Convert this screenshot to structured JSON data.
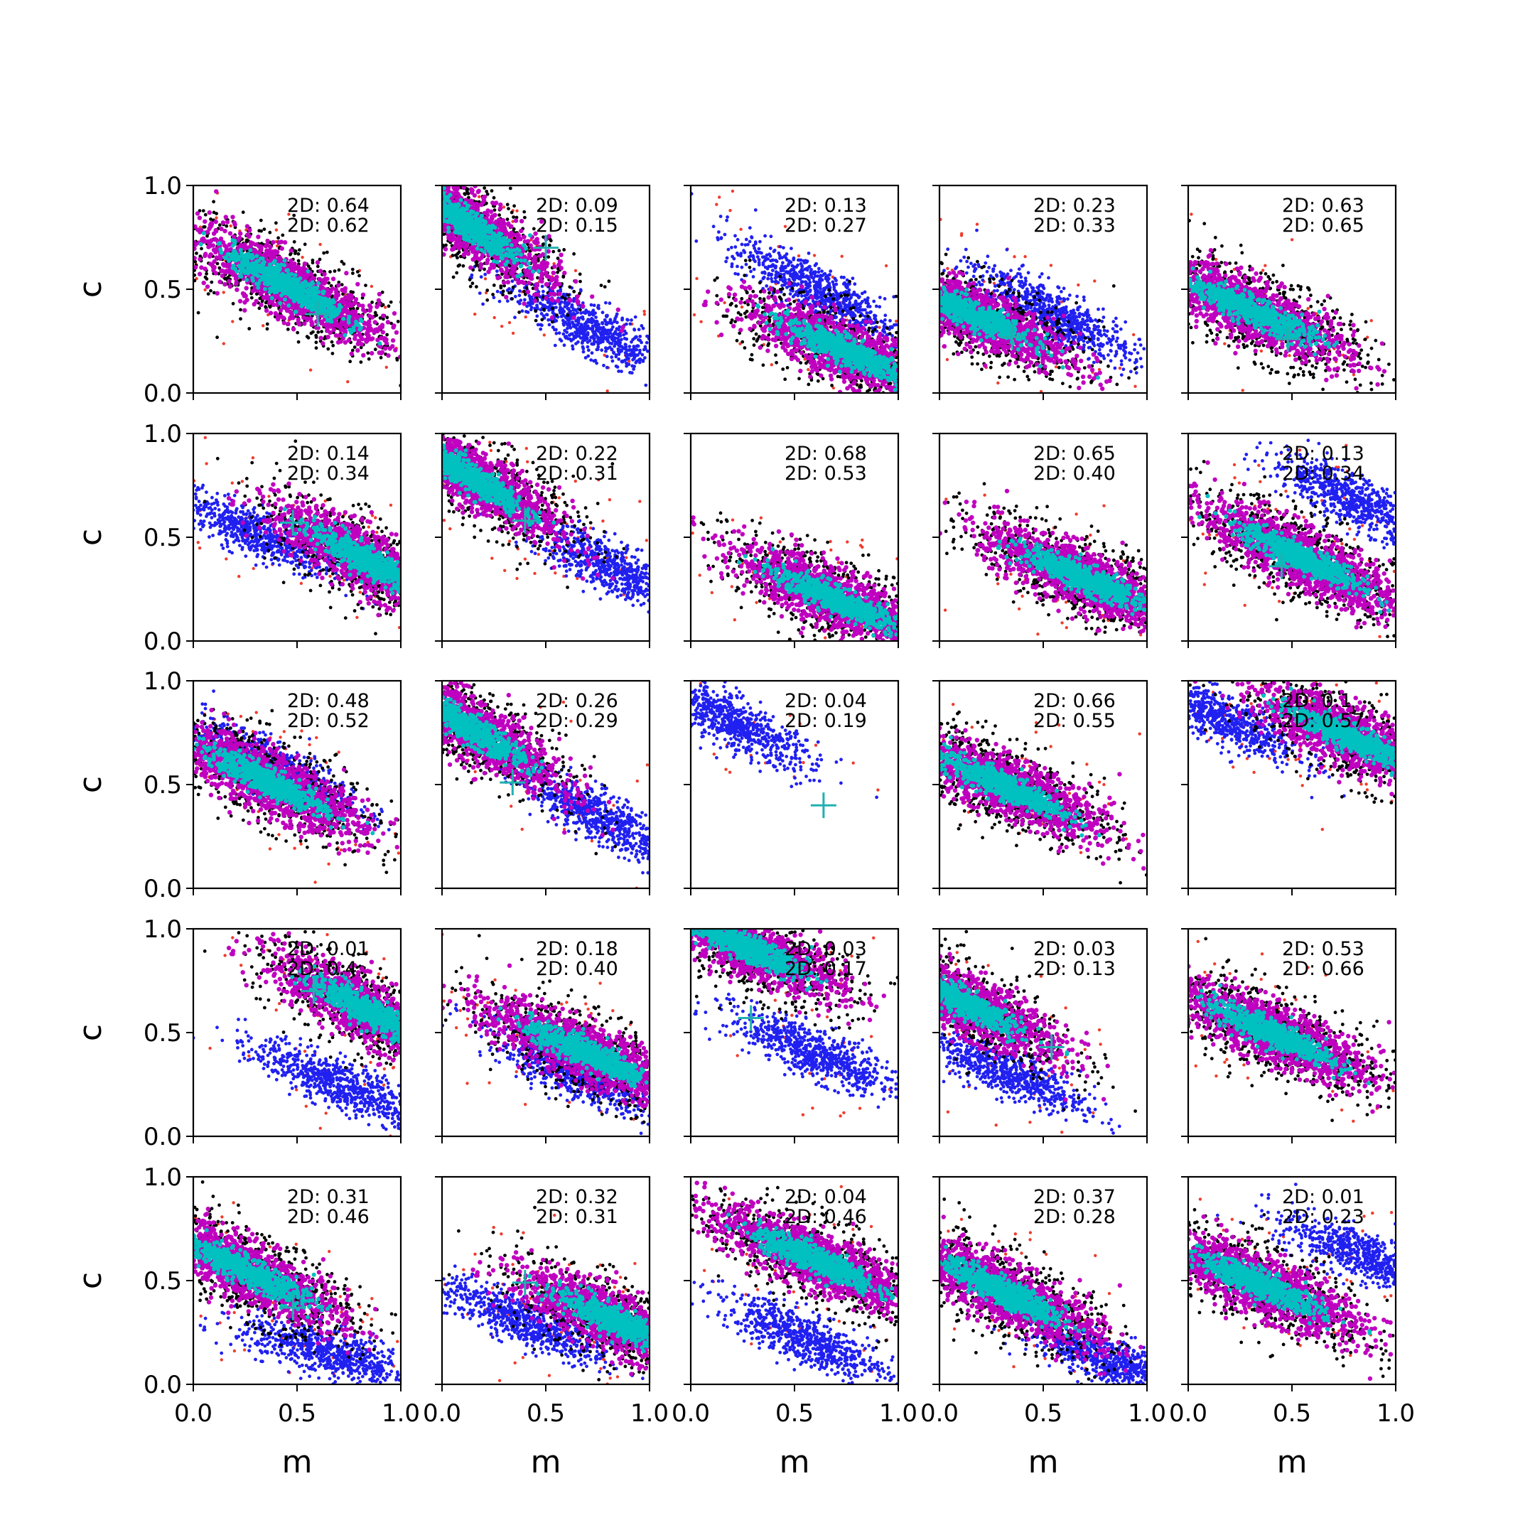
{
  "chart_data": {
    "type": "scatter",
    "layout": {
      "rows": 5,
      "cols": 5
    },
    "xlabel": "m",
    "ylabel": "c",
    "xlim": [
      0.0,
      1.0
    ],
    "ylim": [
      0.0,
      1.0
    ],
    "xticks": [
      "0.0",
      "0.5",
      "1.0"
    ],
    "yticks": [
      "0.0",
      "0.5",
      "1.0"
    ],
    "colors": {
      "red": "#f03c2d",
      "black": "#000000",
      "blue": "#2020f0",
      "magenta": "#c000c0",
      "cyan": "#00c0c0",
      "marker": "#20b0b0"
    },
    "panels": [
      {
        "stats": [
          "2D: 0.64",
          "2D: 0.62"
        ],
        "marker": [
          0.6,
          0.38
        ],
        "main": {
          "m": 0.45,
          "c": 0.52,
          "slope": -0.55
        },
        "blue": null
      },
      {
        "stats": [
          "2D: 0.09",
          "2D: 0.15"
        ],
        "marker": [
          0.5,
          0.7
        ],
        "main": {
          "m": 0.1,
          "c": 0.83,
          "slope": -0.7
        },
        "blue": {
          "m": 0.7,
          "c": 0.32,
          "slope": -0.55
        }
      },
      {
        "stats": [
          "2D: 0.13",
          "2D: 0.27"
        ],
        "marker": null,
        "main": {
          "m": 0.75,
          "c": 0.2,
          "slope": -0.45
        },
        "blue": {
          "m": 0.6,
          "c": 0.5,
          "slope": -0.55
        }
      },
      {
        "stats": [
          "2D: 0.23",
          "2D: 0.33"
        ],
        "marker": [
          0.35,
          0.27
        ],
        "main": {
          "m": 0.15,
          "c": 0.38,
          "slope": -0.45
        },
        "blue": {
          "m": 0.55,
          "c": 0.38,
          "slope": -0.55
        }
      },
      {
        "stats": [
          "2D: 0.63",
          "2D: 0.65"
        ],
        "marker": [
          0.48,
          0.26
        ],
        "main": {
          "m": 0.3,
          "c": 0.4,
          "slope": -0.45
        },
        "blue": null
      },
      {
        "stats": [
          "2D: 0.14",
          "2D: 0.34"
        ],
        "marker": [
          0.48,
          0.57
        ],
        "main": {
          "m": 0.85,
          "c": 0.38,
          "slope": -0.55
        },
        "blue": {
          "m": 0.3,
          "c": 0.52,
          "slope": -0.45
        }
      },
      {
        "stats": [
          "2D: 0.22",
          "2D: 0.31"
        ],
        "marker": [
          0.4,
          0.58
        ],
        "main": {
          "m": 0.12,
          "c": 0.8,
          "slope": -0.6
        },
        "blue": {
          "m": 0.82,
          "c": 0.35,
          "slope": -0.5
        }
      },
      {
        "stats": [
          "2D: 0.68",
          "2D: 0.53"
        ],
        "marker": null,
        "main": {
          "m": 0.7,
          "c": 0.2,
          "slope": -0.45
        },
        "blue": null
      },
      {
        "stats": [
          "2D: 0.65",
          "2D: 0.40"
        ],
        "marker": null,
        "main": {
          "m": 0.7,
          "c": 0.3,
          "slope": -0.45
        },
        "blue": null
      },
      {
        "stats": [
          "2D: 0.13",
          "2D: 0.34"
        ],
        "marker": [
          0.45,
          0.36
        ],
        "main": {
          "m": 0.55,
          "c": 0.4,
          "slope": -0.5
        },
        "blue": {
          "m": 0.8,
          "c": 0.68,
          "slope": -0.5
        }
      },
      {
        "stats": [
          "2D: 0.48",
          "2D: 0.52"
        ],
        "marker": null,
        "main": {
          "m": 0.35,
          "c": 0.52,
          "slope": -0.5
        },
        "blue": {
          "m": 0.4,
          "c": 0.58,
          "slope": -0.5
        }
      },
      {
        "stats": [
          "2D: 0.26",
          "2D: 0.29"
        ],
        "marker": [
          0.34,
          0.51
        ],
        "main": {
          "m": 0.12,
          "c": 0.78,
          "slope": -0.6
        },
        "blue": {
          "m": 0.75,
          "c": 0.35,
          "slope": -0.55
        }
      },
      {
        "stats": [
          "2D: 0.04",
          "2D: 0.19"
        ],
        "marker": [
          0.64,
          0.4
        ],
        "main": null,
        "blue": {
          "m": 0.2,
          "c": 0.8,
          "slope": -0.55
        }
      },
      {
        "stats": [
          "2D: 0.66",
          "2D: 0.55"
        ],
        "marker": null,
        "main": {
          "m": 0.3,
          "c": 0.5,
          "slope": -0.45
        },
        "blue": null
      },
      {
        "stats": [
          "2D: 0.1",
          "2D: 0.57"
        ],
        "marker": null,
        "main": {
          "m": 0.8,
          "c": 0.72,
          "slope": -0.45
        },
        "blue": {
          "m": 0.15,
          "c": 0.82,
          "slope": -0.45
        }
      },
      {
        "stats": [
          "2D: 0.01",
          "2D: 0.4"
        ],
        "marker": [
          0.58,
          0.7
        ],
        "main": {
          "m": 0.85,
          "c": 0.6,
          "slope": -0.55
        },
        "blue": {
          "m": 0.7,
          "c": 0.25,
          "slope": -0.45
        }
      },
      {
        "stats": [
          "2D: 0.18",
          "2D: 0.40"
        ],
        "marker": null,
        "main": {
          "m": 0.7,
          "c": 0.4,
          "slope": -0.45
        },
        "blue": {
          "m": 0.65,
          "c": 0.3,
          "slope": -0.45
        }
      },
      {
        "stats": [
          "2D: 0.03",
          "2D: 0.17"
        ],
        "marker": [
          0.29,
          0.57
        ],
        "main": {
          "m": 0.25,
          "c": 0.92,
          "slope": -0.45
        },
        "blue": {
          "m": 0.6,
          "c": 0.4,
          "slope": -0.45
        }
      },
      {
        "stats": [
          "2D: 0.03",
          "2D: 0.13"
        ],
        "marker": [
          0.54,
          0.43
        ],
        "main": {
          "m": 0.1,
          "c": 0.65,
          "slope": -0.5
        },
        "blue": {
          "m": 0.3,
          "c": 0.32,
          "slope": -0.45
        }
      },
      {
        "stats": [
          "2D: 0.53",
          "2D: 0.66"
        ],
        "marker": null,
        "main": {
          "m": 0.4,
          "c": 0.5,
          "slope": -0.45
        },
        "blue": null
      },
      {
        "stats": [
          "2D: 0.31",
          "2D: 0.46"
        ],
        "marker": [
          0.48,
          0.37
        ],
        "main": {
          "m": 0.25,
          "c": 0.55,
          "slope": -0.5
        },
        "blue": {
          "m": 0.65,
          "c": 0.15,
          "slope": -0.3
        }
      },
      {
        "stats": [
          "2D: 0.32",
          "2D: 0.31"
        ],
        "marker": [
          0.4,
          0.49
        ],
        "main": {
          "m": 0.85,
          "c": 0.3,
          "slope": -0.45
        },
        "blue": {
          "m": 0.4,
          "c": 0.3,
          "slope": -0.45
        }
      },
      {
        "stats": [
          "2D: 0.04",
          "2D: 0.46"
        ],
        "marker": null,
        "main": {
          "m": 0.6,
          "c": 0.6,
          "slope": -0.45
        },
        "blue": {
          "m": 0.55,
          "c": 0.22,
          "slope": -0.45
        }
      },
      {
        "stats": [
          "2D: 0.37",
          "2D: 0.28"
        ],
        "marker": null,
        "main": {
          "m": 0.3,
          "c": 0.45,
          "slope": -0.5
        },
        "blue": {
          "m": 0.85,
          "c": 0.1,
          "slope": -0.4
        }
      },
      {
        "stats": [
          "2D: 0.01",
          "2D: 0.23"
        ],
        "marker": null,
        "main": {
          "m": 0.35,
          "c": 0.48,
          "slope": -0.45
        },
        "blue": {
          "m": 0.85,
          "c": 0.62,
          "slope": -0.4
        }
      }
    ]
  }
}
